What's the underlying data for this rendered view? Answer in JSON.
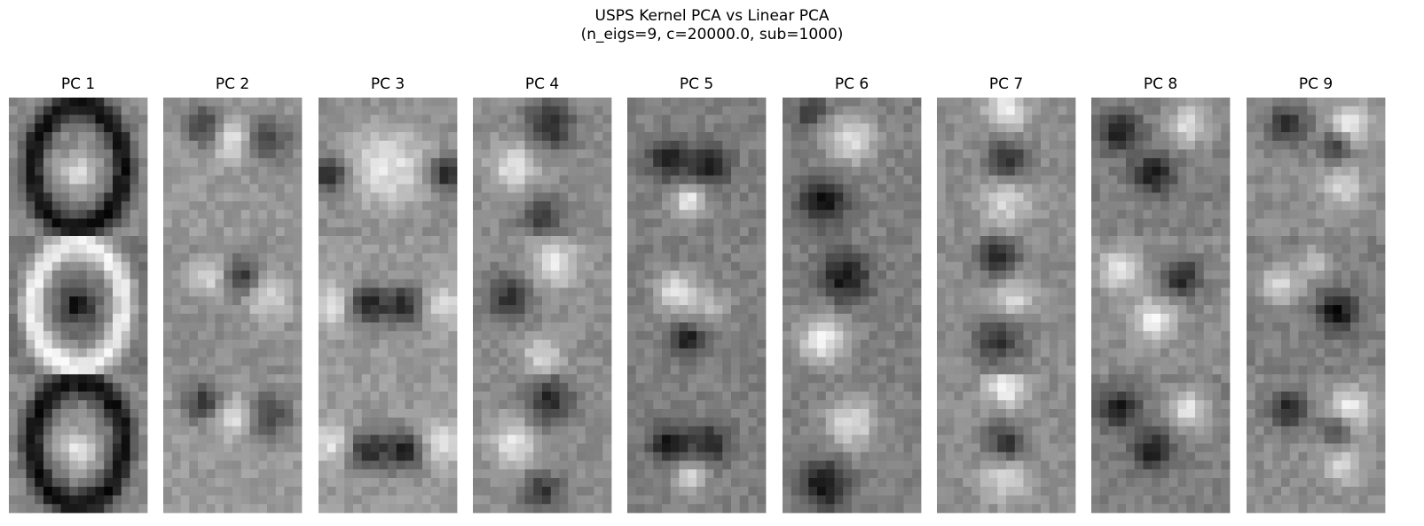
{
  "figure": {
    "title_line1": "USPS Kernel PCA vs Linear PCA",
    "title_line2": "(n_eigs=9, c=20000.0, sub=1000)"
  },
  "chart_data": {
    "type": "heatmap",
    "colormap": "gray",
    "title": "USPS Kernel PCA vs Linear PCA\n(n_eigs=9, c=20000.0, sub=1000)",
    "panels": [
      {
        "label": "PC 1",
        "rows": 3
      },
      {
        "label": "PC 2",
        "rows": 3
      },
      {
        "label": "PC 3",
        "rows": 3
      },
      {
        "label": "PC 4",
        "rows": 3
      },
      {
        "label": "PC 5",
        "rows": 3
      },
      {
        "label": "PC 6",
        "rows": 3
      },
      {
        "label": "PC 7",
        "rows": 3
      },
      {
        "label": "PC 8",
        "rows": 3
      },
      {
        "label": "PC 9",
        "rows": 3
      }
    ],
    "image_grid": "16x16",
    "axes": "off",
    "grid": false
  },
  "colors": {
    "background": "#ffffff",
    "text": "#000000"
  }
}
